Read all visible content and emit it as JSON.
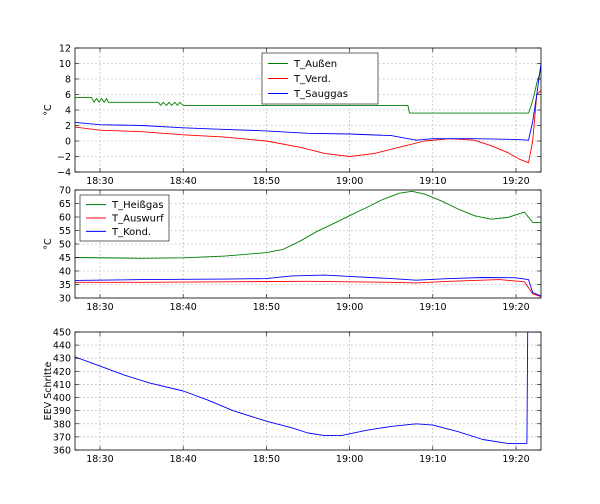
{
  "chart_data": [
    {
      "type": "line",
      "ylabel": "°C",
      "ylim": [
        -4,
        12
      ],
      "yticks": [
        -4,
        -2,
        0,
        2,
        4,
        6,
        8,
        10,
        12
      ],
      "xlim": [
        "18:27",
        "19:23"
      ],
      "xticks": [
        "18:30",
        "18:40",
        "18:50",
        "19:00",
        "19:10",
        "19:20"
      ],
      "grid": true,
      "legend": "top-center",
      "series": [
        {
          "name": "T_Außen",
          "color": "#008000",
          "x": [
            "18:27",
            "18:29",
            "18:29.3",
            "18:29.6",
            "18:29.9",
            "18:30.2",
            "18:30.5",
            "18:30.8",
            "18:31",
            "18:37",
            "18:37.3",
            "18:37.6",
            "18:38",
            "18:38.3",
            "18:38.6",
            "18:39",
            "18:39.3",
            "18:39.6",
            "18:40",
            "19:07",
            "19:07.2",
            "19:21.5",
            "19:21.8",
            "19:22.2",
            "19:22.5",
            "19:22.8",
            "19:23"
          ],
          "values": [
            5.6,
            5.6,
            5.0,
            5.5,
            5.0,
            5.5,
            5.0,
            5.5,
            5.0,
            5.0,
            4.6,
            5.0,
            4.6,
            5.0,
            4.6,
            5.0,
            4.6,
            5.0,
            4.6,
            4.6,
            3.6,
            3.6,
            4.5,
            6.0,
            7.5,
            8.5,
            9.5
          ]
        },
        {
          "name": "T_Verd.",
          "color": "#ff0000",
          "x": [
            "18:27",
            "18:30",
            "18:35",
            "18:40",
            "18:45",
            "18:50",
            "18:54",
            "18:57",
            "19:00",
            "19:03",
            "19:06",
            "19:09",
            "19:12",
            "19:15",
            "19:17",
            "19:19",
            "19:20.5",
            "19:21.5",
            "19:22",
            "19:22.5",
            "19:23"
          ],
          "values": [
            1.8,
            1.4,
            1.2,
            0.8,
            0.5,
            0.0,
            -0.8,
            -1.6,
            -2.0,
            -1.6,
            -0.8,
            0.0,
            0.3,
            0.1,
            -0.6,
            -1.5,
            -2.4,
            -2.8,
            0.0,
            6.0,
            6.5
          ]
        },
        {
          "name": "T_Sauggas",
          "color": "#0000ff",
          "x": [
            "18:27",
            "18:30",
            "18:35",
            "18:40",
            "18:45",
            "18:50",
            "18:55",
            "19:00",
            "19:05",
            "19:08",
            "19:10",
            "19:15",
            "19:20",
            "19:21.5",
            "19:22",
            "19:22.5",
            "19:23"
          ],
          "values": [
            2.4,
            2.1,
            2.0,
            1.7,
            1.5,
            1.3,
            1.0,
            0.9,
            0.7,
            0.1,
            0.3,
            0.3,
            0.2,
            0.1,
            2.5,
            6.0,
            10.0
          ]
        }
      ]
    },
    {
      "type": "line",
      "ylabel": "°C",
      "ylim": [
        30,
        70
      ],
      "yticks": [
        30,
        35,
        40,
        45,
        50,
        55,
        60,
        65,
        70
      ],
      "xlim": [
        "18:27",
        "19:23"
      ],
      "xticks": [
        "18:30",
        "18:40",
        "18:50",
        "19:00",
        "19:10",
        "19:20"
      ],
      "grid": true,
      "legend": "top-left",
      "series": [
        {
          "name": "T_Heißgas",
          "color": "#008000",
          "x": [
            "18:27",
            "18:35",
            "18:40",
            "18:45",
            "18:50",
            "18:52",
            "18:54",
            "18:56",
            "18:58",
            "19:00",
            "19:02",
            "19:04",
            "19:06",
            "19:07.5",
            "19:09",
            "19:11",
            "19:13",
            "19:15",
            "19:17",
            "19:19",
            "19:21",
            "19:22",
            "19:23"
          ],
          "values": [
            45,
            44.7,
            44.9,
            45.5,
            46.8,
            48,
            51,
            54.5,
            57.5,
            60.5,
            63.5,
            66.5,
            68.8,
            69.5,
            68.5,
            66,
            63,
            60.5,
            59.2,
            59.8,
            61.8,
            58,
            58
          ]
        },
        {
          "name": "T_Auswurf",
          "color": "#ff0000",
          "x": [
            "18:27",
            "18:35",
            "18:45",
            "18:55",
            "19:00",
            "19:05",
            "19:08",
            "19:12",
            "19:18",
            "19:21",
            "19:22",
            "19:23"
          ],
          "values": [
            35.8,
            35.8,
            36.0,
            36.2,
            36.0,
            35.8,
            35.6,
            36.2,
            36.8,
            36.0,
            31.5,
            30.5
          ]
        },
        {
          "name": "T_Kond.",
          "color": "#0000ff",
          "x": [
            "18:27",
            "18:35",
            "18:45",
            "18:50",
            "18:53",
            "18:57",
            "19:00",
            "19:05",
            "19:08",
            "19:12",
            "19:16",
            "19:20",
            "19:21.5",
            "19:22",
            "19:23"
          ],
          "values": [
            36.5,
            36.8,
            37.0,
            37.2,
            38.2,
            38.5,
            38.0,
            37.2,
            36.6,
            37.2,
            37.6,
            37.5,
            36.8,
            32.0,
            30.8
          ]
        }
      ]
    },
    {
      "type": "line",
      "ylabel": "EEV Schritte",
      "ylim": [
        360,
        450
      ],
      "yticks": [
        360,
        370,
        380,
        390,
        400,
        410,
        420,
        430,
        440,
        450
      ],
      "xlim": [
        "18:27",
        "19:23"
      ],
      "xticks": [
        "18:30",
        "18:40",
        "18:50",
        "19:00",
        "19:10",
        "19:20"
      ],
      "grid": true,
      "series": [
        {
          "name": "",
          "color": "#0000ff",
          "x": [
            "18:27",
            "18:30",
            "18:33",
            "18:36",
            "18:40",
            "18:43",
            "18:46",
            "18:50",
            "18:53",
            "18:55",
            "18:57",
            "18:59",
            "19:02",
            "19:05",
            "19:08",
            "19:10",
            "19:13",
            "19:16",
            "19:19",
            "19:21.3",
            "19:21.4",
            "19:23"
          ],
          "values": [
            431,
            424,
            417,
            411,
            405,
            398,
            390,
            382,
            377,
            373,
            371,
            371,
            375,
            378,
            380,
            379,
            374,
            368,
            365,
            365,
            450,
            450
          ]
        }
      ]
    }
  ]
}
